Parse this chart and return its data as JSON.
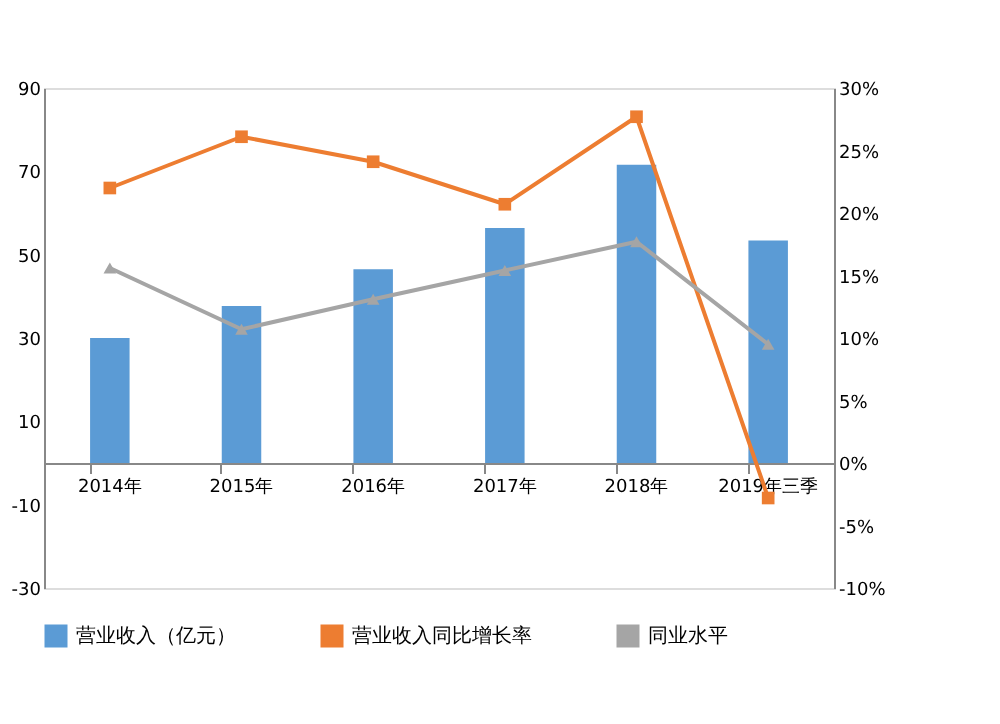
{
  "chart_data": {
    "type": "bar",
    "categories": [
      "2014年",
      "2015年",
      "2016年",
      "2017年",
      "2018年",
      "2019年三季"
    ],
    "series": [
      {
        "name": "营业收入（亿元）",
        "color": "#5b9bd5",
        "values": [
          30,
          37.7,
          46.5,
          56.4,
          71.6,
          53.4
        ]
      },
      {
        "name": "营业收入同比增长率",
        "type": "line",
        "axis": "y2",
        "marker": "square",
        "color": "#ed7d31",
        "values": [
          22.0,
          26.1,
          24.1,
          20.7,
          27.7,
          -2.8
        ]
      },
      {
        "name": "同业水平",
        "type": "line",
        "axis": "y2",
        "marker": "triangle",
        "color": "#a5a5a5",
        "values": [
          15.6,
          10.7,
          13.1,
          15.4,
          17.7,
          9.5
        ]
      }
    ],
    "ylim": [
      -30,
      90
    ],
    "yticks": [
      -30,
      -10,
      10,
      30,
      50,
      70,
      90
    ],
    "y2lim": [
      -10,
      30
    ],
    "y2ticks": [
      {
        "value": -10,
        "label": "-10%"
      },
      {
        "value": -5,
        "label": "-5%"
      },
      {
        "value": 0,
        "label": "0%"
      },
      {
        "value": 5,
        "label": "5%"
      },
      {
        "value": 10,
        "label": "10%"
      },
      {
        "value": 15,
        "label": "15%"
      },
      {
        "value": 20,
        "label": "20%"
      },
      {
        "value": 25,
        "label": "25%"
      },
      {
        "value": 30,
        "label": "30%"
      }
    ],
    "legend": "bottom",
    "grid": false
  }
}
